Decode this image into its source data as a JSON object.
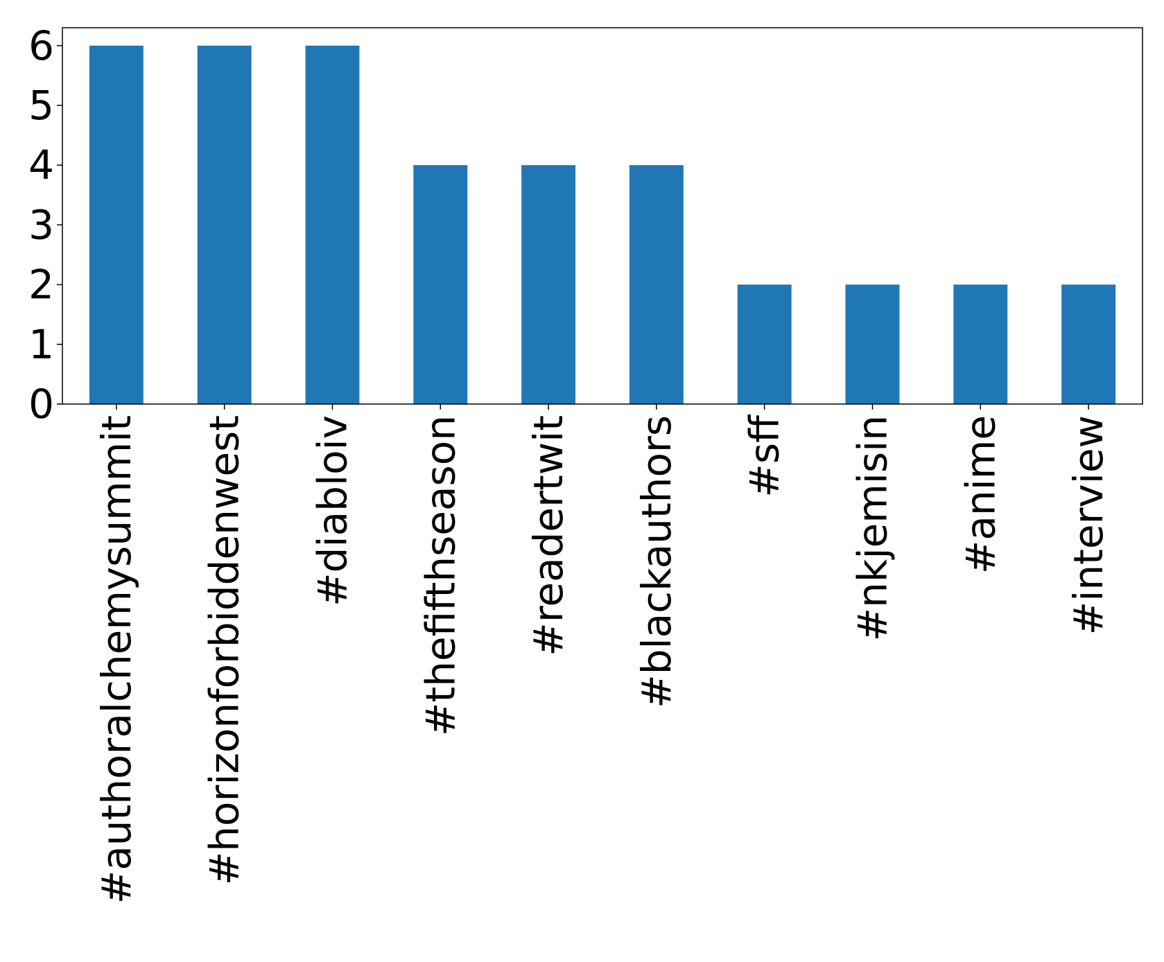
{
  "chart_data": {
    "type": "bar",
    "categories": [
      "#authoralchemysummit",
      "#horizonforbiddenwest",
      "#diabloiv",
      "#thefifthseason",
      "#readertwit",
      "#blackauthors",
      "#sff",
      "#nkjemisin",
      "#anime",
      "#interview"
    ],
    "values": [
      6,
      6,
      6,
      4,
      4,
      4,
      2,
      2,
      2,
      2
    ],
    "ylim": [
      0,
      6.3
    ],
    "yticks": [
      0,
      1,
      2,
      3,
      4,
      5,
      6
    ],
    "xlabel": "",
    "ylabel": "",
    "title": "",
    "grid": false,
    "bar_color": "#1f77b4"
  }
}
